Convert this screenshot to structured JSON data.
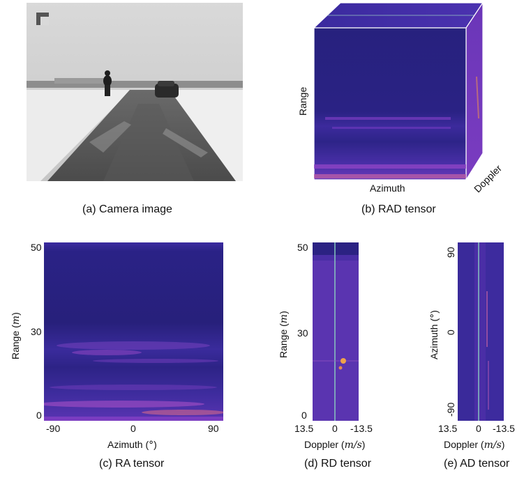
{
  "panels": {
    "a": {
      "caption": "(a)  Camera image"
    },
    "b": {
      "caption": "(b) RAD tensor",
      "range_label": "Range",
      "azimuth_label": "Azimuth",
      "doppler_label": "Doppler"
    },
    "c": {
      "caption": "(c) RA tensor",
      "ylabel_text": "Range (",
      "ylabel_unit": "m",
      "ylabel_close": ")",
      "xlabel_text": "Azimuth (",
      "xlabel_unit": "°",
      "xlabel_close": ")",
      "yticks": [
        "50",
        "30",
        "0"
      ],
      "xticks": [
        "-90",
        "0",
        "90"
      ]
    },
    "d": {
      "caption": "(d) RD tensor",
      "ylabel_text": "Range (",
      "ylabel_unit": "m",
      "ylabel_close": ")",
      "xlabel_text": "Doppler (",
      "xlabel_unit": "m/s",
      "xlabel_close": ")",
      "yticks": [
        "50",
        "30",
        "0"
      ],
      "xticks": [
        "13.5",
        "0",
        "-13.5"
      ]
    },
    "e": {
      "caption": "(e) AD tensor",
      "ylabel_text": "Azimuth (",
      "ylabel_unit": "°",
      "ylabel_close": ")",
      "xlabel_text": "Doppler (",
      "xlabel_unit": "m/s",
      "xlabel_close": ")",
      "yticks": [
        "90",
        "0",
        "-90"
      ],
      "xticks": [
        "13.5",
        "0",
        "-13.5"
      ]
    }
  },
  "colors": {
    "heatmap_low": "#25207a",
    "heatmap_mid": "#7a2fbf",
    "heatmap_high": "#f0a24a",
    "zero_line": "#8ad0c0"
  }
}
